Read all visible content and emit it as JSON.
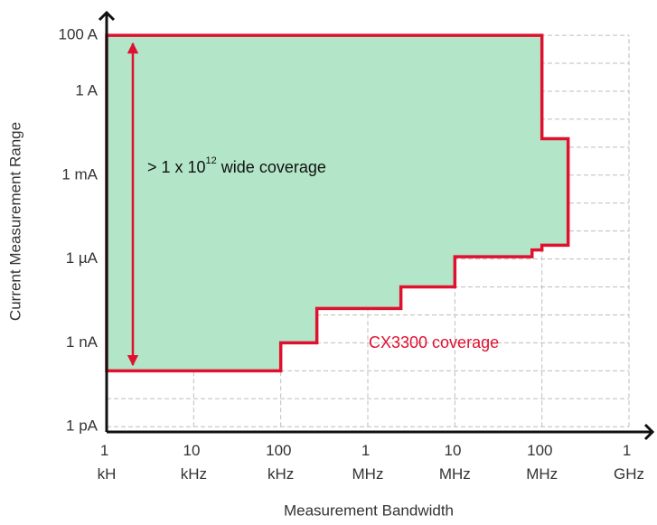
{
  "chart_data": {
    "type": "area",
    "x_label": "Measurement Bandwidth",
    "y_label": "Current Measurement Range",
    "log_x": true,
    "log_y": true,
    "grid": true,
    "xlim": [
      1000,
      2000000000
    ],
    "ylim": [
      6.5e-13,
      600
    ],
    "xticks": [
      {
        "value": 1000,
        "label": "1 kH"
      },
      {
        "value": 10000,
        "label": "10 kHz"
      },
      {
        "value": 100000,
        "label": "100 kHz"
      },
      {
        "value": 1000000,
        "label": "1 MHz"
      },
      {
        "value": 10000000,
        "label": "10 MHz"
      },
      {
        "value": 100000000,
        "label": "100 MHz"
      },
      {
        "value": 1000000000,
        "label": "1 GHz"
      }
    ],
    "yticks": [
      {
        "value": 1e-12,
        "label": "1 pA"
      },
      {
        "value": 1e-09,
        "label": "1 nA"
      },
      {
        "value": 1e-06,
        "label": "1 µA"
      },
      {
        "value": 0.001,
        "label": "1 mA"
      },
      {
        "value": 1,
        "label": "1 A"
      },
      {
        "value": 100,
        "label": "100 A"
      }
    ],
    "y_grid": [
      1e-12,
      1e-11,
      1e-10,
      1e-09,
      1e-08,
      1e-07,
      1e-06,
      1e-05,
      0.0001,
      0.001,
      0.01,
      0.1,
      1,
      10,
      100
    ],
    "annotation": {
      "text": "> 1 x 10",
      "superscript": "12",
      "text_after": " wide coverage"
    },
    "series": [
      {
        "name": "CX3300 coverage",
        "color": "#e0102f",
        "fill": "#b3e6c8",
        "x": [
          1000,
          100000000,
          100000000,
          200000000,
          200000000,
          100000000,
          100000000,
          77000000,
          77000000,
          10000000,
          10000000,
          2400000,
          2400000,
          260000,
          260000,
          100000,
          100000,
          1000
        ],
        "values": [
          100,
          100,
          0.02,
          0.02,
          3.1e-06,
          3.1e-06,
          2.1e-06,
          2.1e-06,
          1.2e-06,
          1.2e-06,
          1e-07,
          1e-07,
          1.7e-08,
          1.7e-08,
          1e-09,
          1e-09,
          1e-10,
          1e-10
        ]
      }
    ]
  }
}
